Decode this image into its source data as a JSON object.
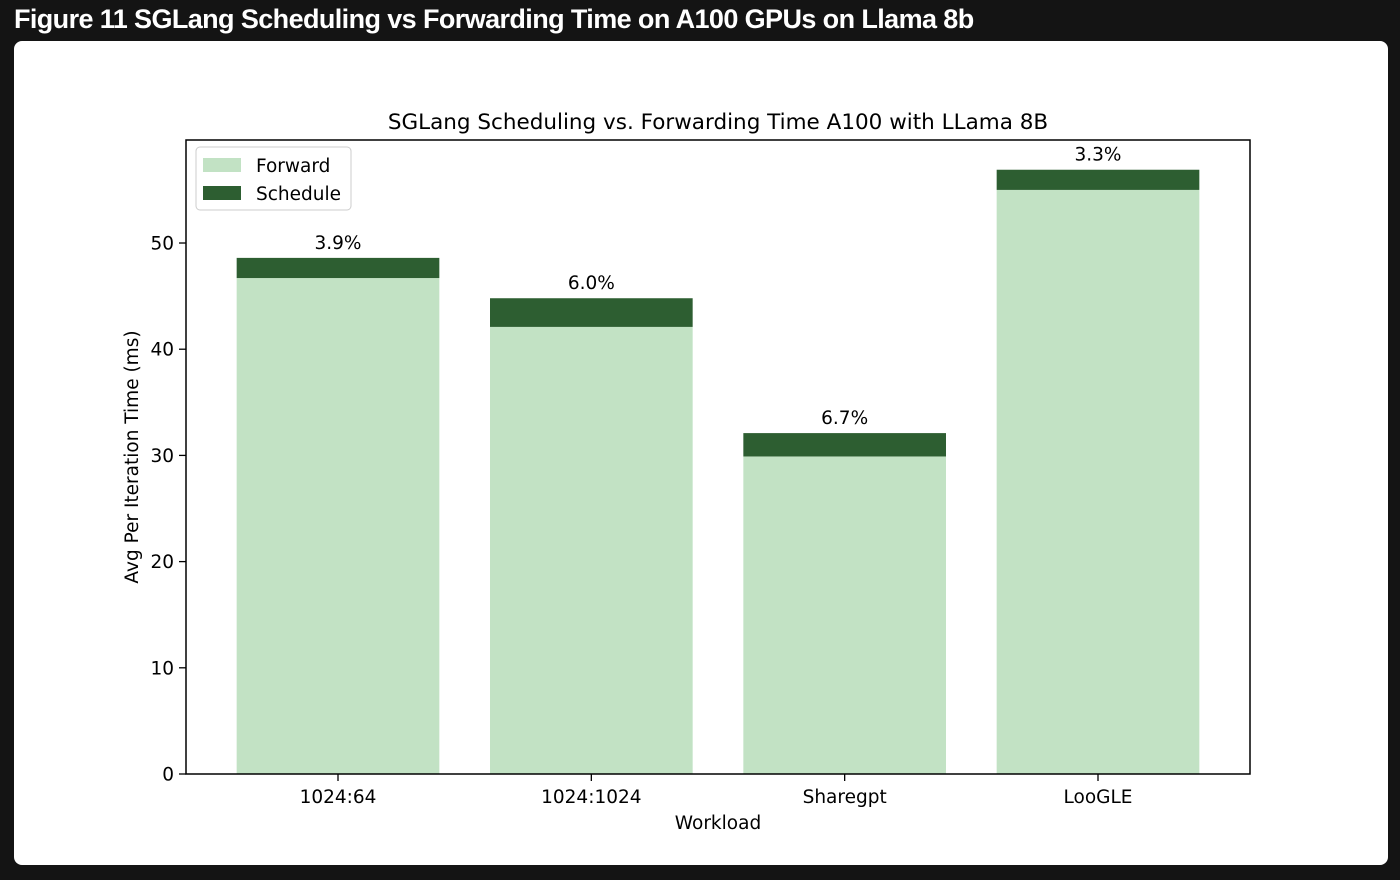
{
  "figure_caption": "Figure 11 SGLang Scheduling vs Forwarding Time on A100 GPUs on Llama 8b",
  "chart_data": {
    "type": "bar",
    "stacked": true,
    "title": "SGLang Scheduling vs. Forwarding Time A100 with LLama 8B",
    "xlabel": "Workload",
    "ylabel": "Avg Per Iteration Time (ms)",
    "categories": [
      "1024:64",
      "1024:1024",
      "Sharegpt",
      "LooGLE"
    ],
    "series": [
      {
        "name": "Forward",
        "values": [
          46.7,
          42.1,
          29.9,
          55.0
        ],
        "color": "#c2e2c4"
      },
      {
        "name": "Schedule",
        "values": [
          1.9,
          2.7,
          2.2,
          1.9
        ],
        "color": "#2d5e31"
      }
    ],
    "bar_labels": [
      "3.9%",
      "6.0%",
      "6.7%",
      "3.3%"
    ],
    "ylim": [
      0,
      59.7
    ],
    "yticks": [
      0,
      10,
      20,
      30,
      40,
      50
    ],
    "grid": false,
    "legend_position": "upper left"
  }
}
